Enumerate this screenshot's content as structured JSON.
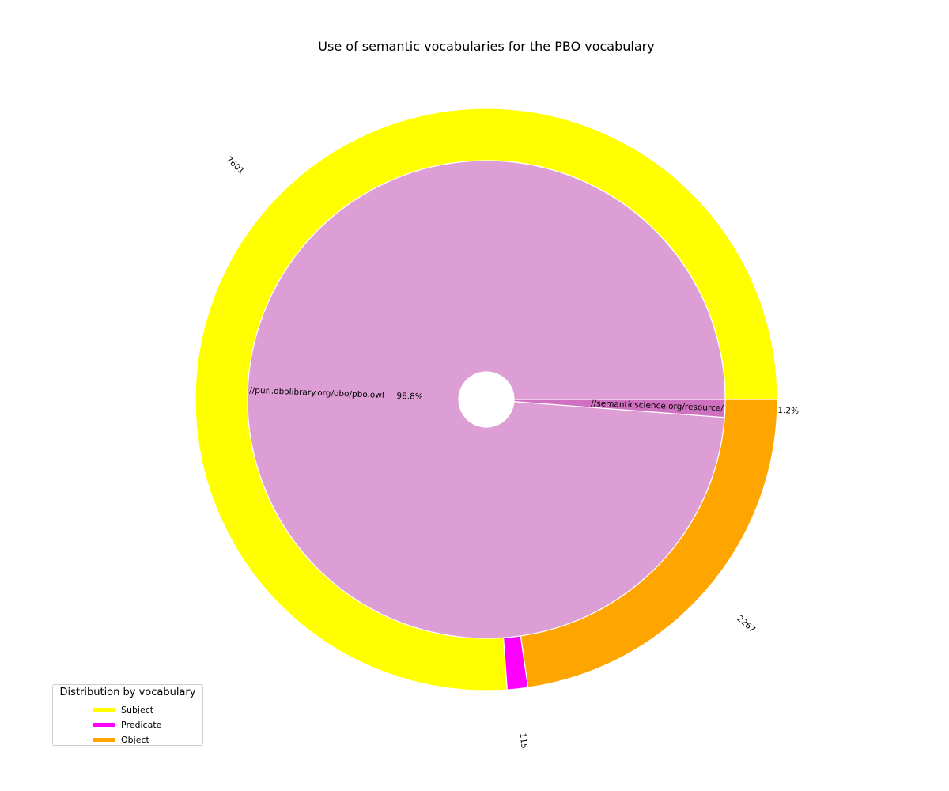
{
  "chart_data": {
    "type": "pie",
    "title": "Use of semantic vocabularies for the PBO vocabulary",
    "inner": {
      "slices": [
        {
          "label": "//purl.obolibrary.org/obo/pbo.owl",
          "percent": 98.8,
          "percent_label": "98.8%",
          "color": "#dd9dd5"
        },
        {
          "label": "//semanticscience.org/resource/",
          "percent": 1.2,
          "percent_label": "1.2%",
          "color": "#d070c0"
        }
      ]
    },
    "outer": {
      "slices": [
        {
          "series": "Subject",
          "value": 7601,
          "value_label": "7601",
          "color": "#ffff00"
        },
        {
          "series": "Predicate",
          "value": 115,
          "value_label": "115",
          "color": "#ff00ff"
        },
        {
          "series": "Object",
          "value": 2267,
          "value_label": "2267",
          "color": "#ffa500"
        }
      ]
    },
    "legend": {
      "title": "Distribution by vocabulary",
      "placement": "lower-left",
      "items": [
        {
          "label": "Subject",
          "color": "#ffff00"
        },
        {
          "label": "Predicate",
          "color": "#ff00ff"
        },
        {
          "label": "Object",
          "color": "#ffa500"
        }
      ]
    }
  }
}
